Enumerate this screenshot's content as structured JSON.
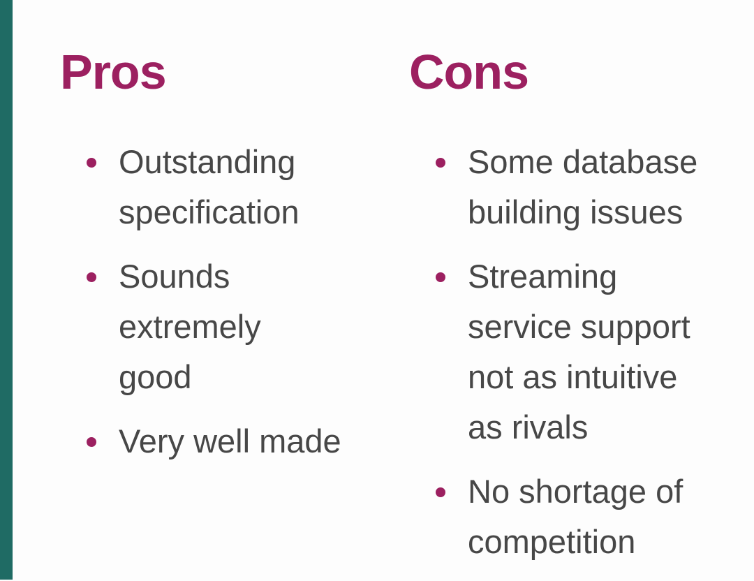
{
  "colors": {
    "accent": "#9c2060",
    "side_bar": "#1f6b64",
    "text": "#474747"
  },
  "pros": {
    "title": "Pros",
    "items": [
      "Outstanding specification",
      "Sounds extremely good",
      "Very well made"
    ]
  },
  "cons": {
    "title": "Cons",
    "items": [
      "Some database building issues",
      "Streaming service support not as intuitive as rivals",
      "No shortage of competition"
    ]
  }
}
